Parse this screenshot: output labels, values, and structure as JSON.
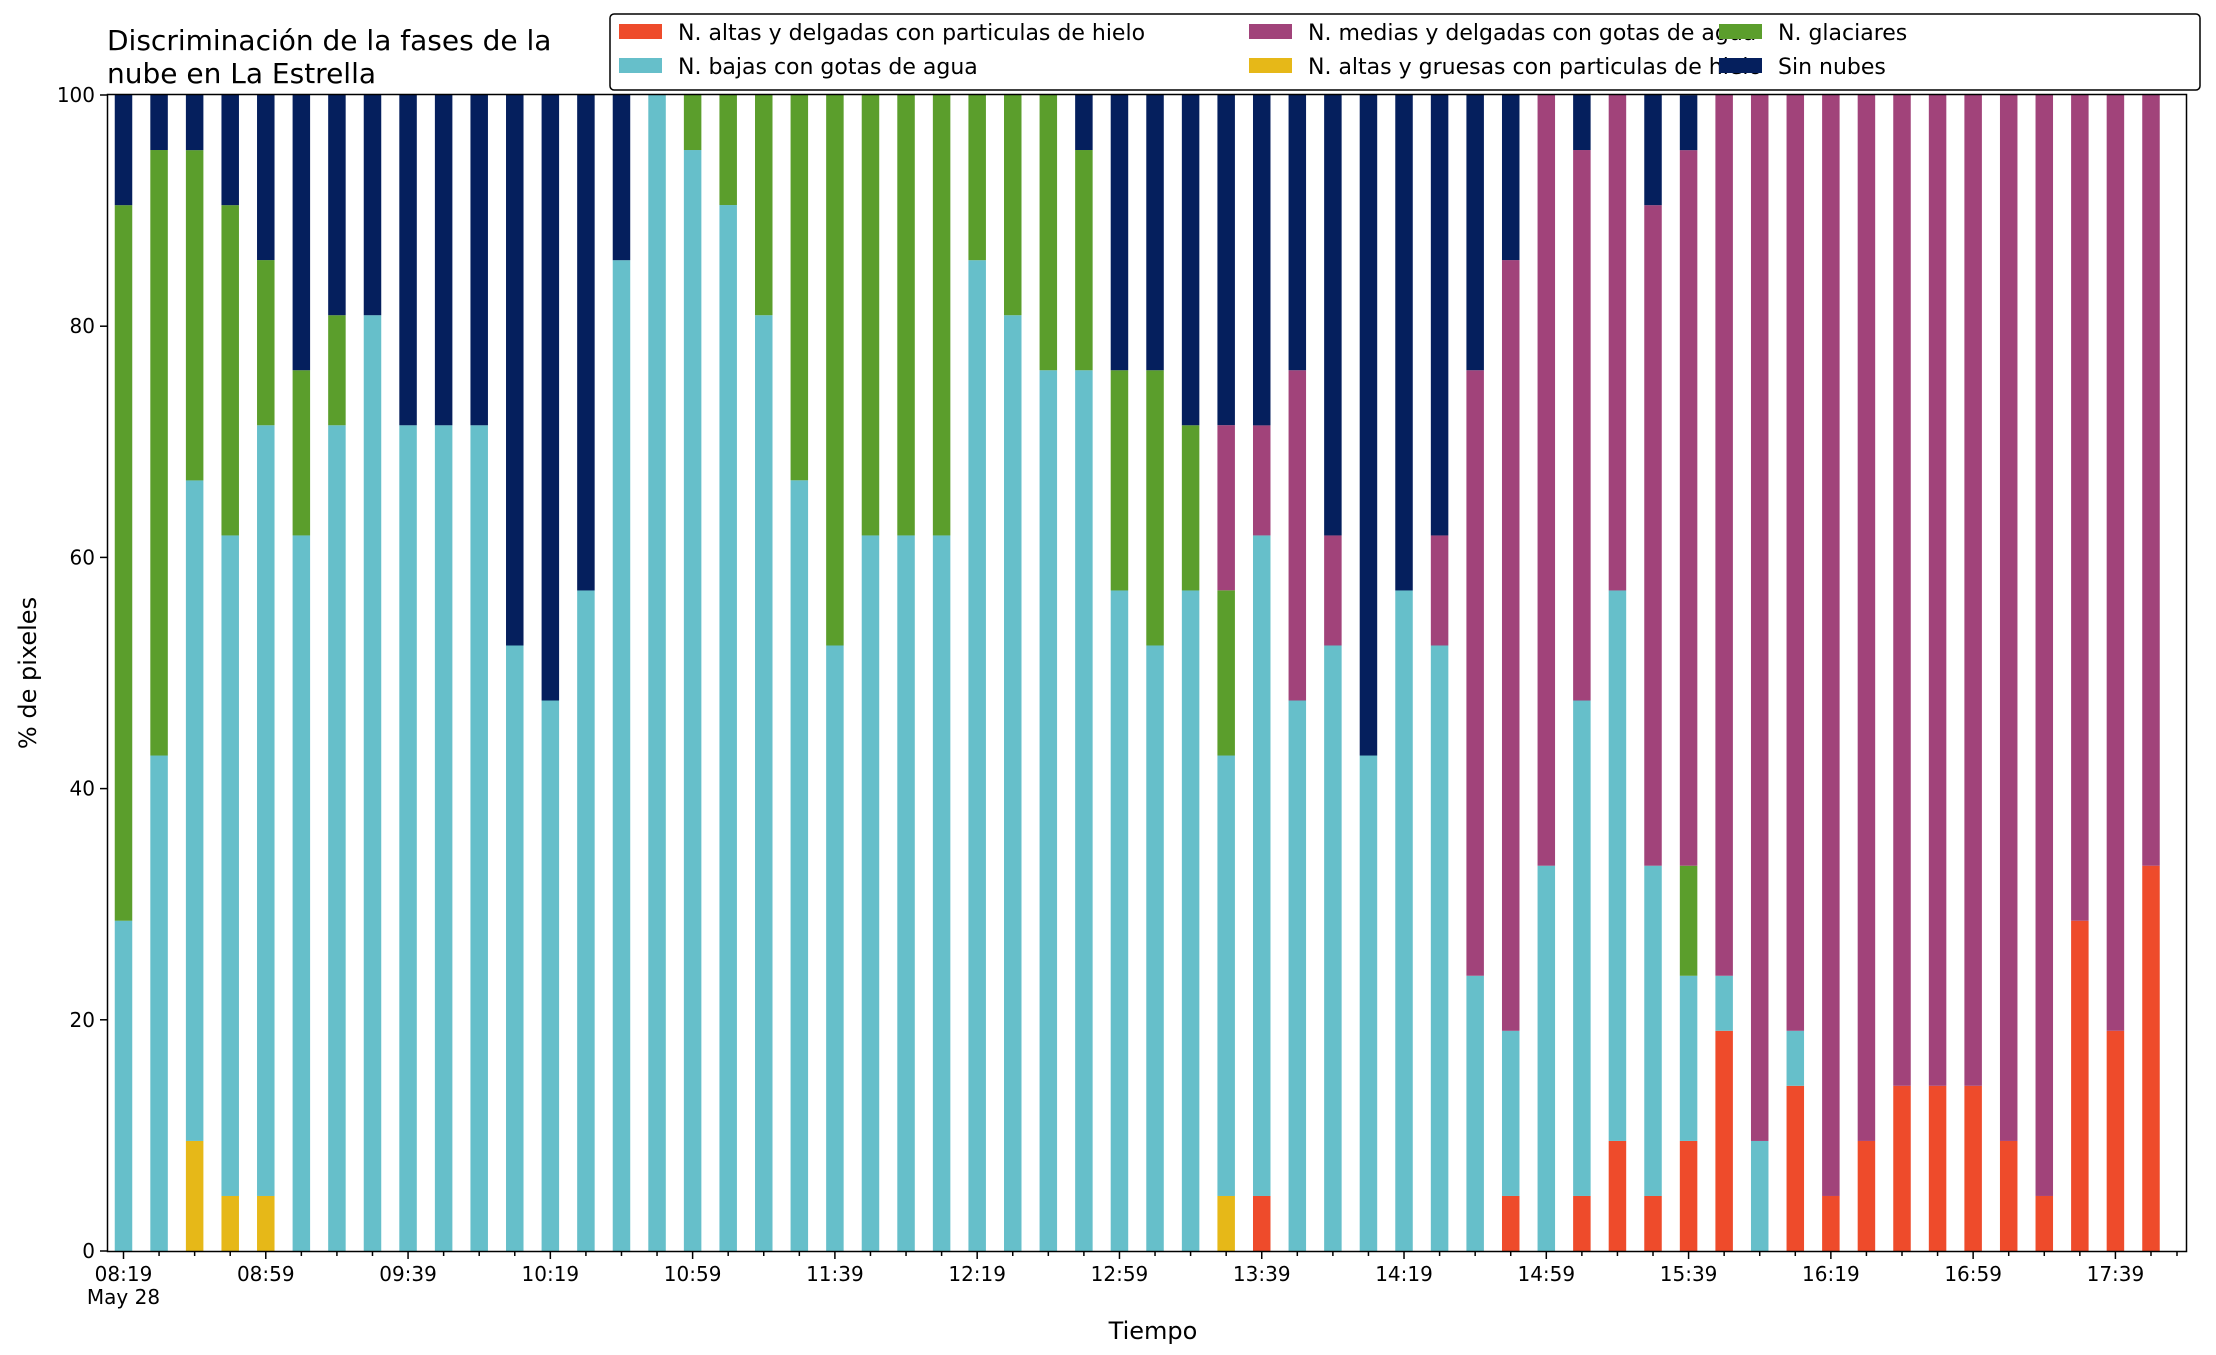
{
  "chart_data": {
    "type": "bar",
    "stacked": true,
    "title_lines": [
      "Discriminación de la fases de la",
      "nube en La Estrella"
    ],
    "xlabel": "Tiempo",
    "ylabel": "% de pixeles",
    "ylim": [
      0,
      100
    ],
    "yticks": [
      0,
      20,
      40,
      60,
      80,
      100
    ],
    "x_tick_labels": [
      {
        "index": 0,
        "label": "08:19"
      },
      {
        "index": 4,
        "label": "08:59"
      },
      {
        "index": 8,
        "label": "09:39"
      },
      {
        "index": 12,
        "label": "10:19"
      },
      {
        "index": 16,
        "label": "10:59"
      },
      {
        "index": 20,
        "label": "11:39"
      },
      {
        "index": 24,
        "label": "12:19"
      },
      {
        "index": 28,
        "label": "12:59"
      },
      {
        "index": 32,
        "label": "13:39"
      },
      {
        "index": 36,
        "label": "14:19"
      },
      {
        "index": 40,
        "label": "14:59"
      },
      {
        "index": 44,
        "label": "15:39"
      },
      {
        "index": 48,
        "label": "16:19"
      },
      {
        "index": 52,
        "label": "16:59"
      },
      {
        "index": 56,
        "label": "17:39"
      }
    ],
    "date_label": "May 28",
    "grid": false,
    "legend_position": "top-right",
    "legend_order": [
      0,
      2,
      4,
      1,
      3,
      5
    ],
    "series": [
      {
        "name": "N. altas y delgadas con particulas de hielo",
        "color": "#ee4b2b",
        "values": [
          0,
          0,
          0,
          0,
          0,
          0,
          0,
          0,
          0,
          0,
          0,
          0,
          0,
          0,
          0,
          0,
          0,
          0,
          0,
          0,
          0,
          0,
          0,
          0,
          0,
          0,
          0,
          0,
          0,
          0,
          0,
          0,
          4.76,
          0,
          0,
          0,
          0,
          0,
          0,
          4.76,
          0,
          4.76,
          9.52,
          4.76,
          9.52,
          19.05,
          0,
          14.29,
          4.76,
          9.52,
          14.29,
          14.29,
          14.29,
          9.52,
          4.76,
          28.57,
          19.05,
          33.33
        ]
      },
      {
        "name": "N. altas y gruesas con particulas de hielo",
        "color": "#e6b818",
        "values": [
          0,
          0,
          9.52,
          4.76,
          4.76,
          0,
          0,
          0,
          0,
          0,
          0,
          0,
          0,
          0,
          0,
          0,
          0,
          0,
          0,
          0,
          0,
          0,
          0,
          0,
          0,
          0,
          0,
          0,
          0,
          0,
          0,
          4.76,
          0,
          0,
          0,
          0,
          0,
          0,
          0,
          0,
          0,
          0,
          0,
          0,
          0,
          0,
          0,
          0,
          0,
          0,
          0,
          0,
          0,
          0,
          0,
          0,
          0,
          0
        ]
      },
      {
        "name": "N. bajas con gotas de agua",
        "color": "#66bfca",
        "values": [
          28.57,
          42.86,
          57.14,
          57.14,
          66.67,
          61.9,
          71.43,
          80.95,
          71.43,
          71.43,
          71.43,
          52.38,
          47.62,
          57.14,
          85.71,
          100,
          95.24,
          90.48,
          80.95,
          66.67,
          52.38,
          61.9,
          61.9,
          61.9,
          85.71,
          80.95,
          76.19,
          76.19,
          57.14,
          52.38,
          57.14,
          38.1,
          57.14,
          47.62,
          52.38,
          42.86,
          57.14,
          52.38,
          23.81,
          14.29,
          33.33,
          42.86,
          47.62,
          28.57,
          14.29,
          4.76,
          9.52,
          4.76,
          0,
          0,
          0,
          0,
          0,
          0,
          0,
          0,
          0,
          0
        ]
      },
      {
        "name": "N. glaciares",
        "color": "#5b9e2c",
        "values": [
          61.9,
          52.38,
          28.57,
          28.57,
          14.29,
          14.29,
          9.52,
          0,
          0,
          0,
          0,
          0,
          0,
          0,
          0,
          0,
          4.76,
          9.52,
          19.05,
          33.33,
          47.62,
          38.1,
          38.1,
          38.1,
          14.29,
          19.05,
          23.81,
          19.05,
          19.05,
          23.81,
          14.29,
          14.29,
          0,
          0,
          0,
          0,
          0,
          0,
          0,
          0,
          0,
          0,
          0,
          0,
          9.52,
          0,
          0,
          0,
          0,
          0,
          0,
          0,
          0,
          0,
          0,
          0,
          0,
          0
        ]
      },
      {
        "name": "N. medias y delgadas con gotas de agua",
        "color": "#a1437a",
        "values": [
          0,
          0,
          0,
          0,
          0,
          0,
          0,
          0,
          0,
          0,
          0,
          0,
          0,
          0,
          0,
          0,
          0,
          0,
          0,
          0,
          0,
          0,
          0,
          0,
          0,
          0,
          0,
          0,
          0,
          0,
          0,
          14.29,
          9.52,
          28.57,
          9.52,
          0,
          0,
          9.52,
          52.38,
          66.67,
          66.67,
          47.62,
          42.86,
          57.14,
          61.9,
          76.19,
          90.48,
          80.95,
          95.24,
          90.48,
          85.71,
          85.71,
          85.71,
          90.48,
          95.24,
          71.43,
          80.95,
          66.67
        ]
      },
      {
        "name": "Sin nubes",
        "color": "#051f5d",
        "values": [
          9.53,
          4.76,
          4.77,
          9.53,
          14.28,
          23.81,
          19.05,
          19.05,
          28.57,
          28.57,
          28.57,
          47.62,
          52.38,
          42.86,
          14.29,
          0,
          0,
          0,
          0,
          0,
          0,
          0,
          0,
          0,
          0,
          0,
          0,
          4.76,
          23.81,
          23.81,
          28.57,
          28.57,
          28.58,
          23.81,
          38.1,
          57.14,
          42.86,
          38.1,
          23.81,
          14.28,
          0,
          4.76,
          0,
          9.53,
          4.76,
          0,
          0,
          0,
          0,
          0,
          0,
          0,
          0,
          0,
          0,
          0,
          0,
          0
        ]
      }
    ]
  }
}
